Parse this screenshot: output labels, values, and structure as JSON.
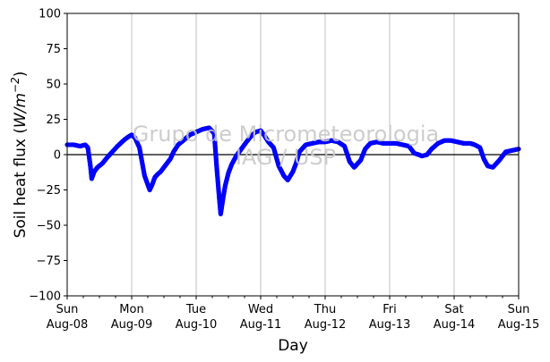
{
  "chart_data": {
    "type": "scatter",
    "title": "",
    "xlabel": "Day",
    "ylabel_main": "Soil heat flux (",
    "ylabel_unit": "W/m",
    "ylabel_exp": "−2",
    "ylabel_close": ")",
    "ylim": [
      -100,
      100
    ],
    "yticks": [
      -100,
      -75,
      -50,
      -25,
      0,
      25,
      50,
      75,
      100
    ],
    "ytick_labels": [
      "−100",
      "−75",
      "−50",
      "−25",
      "0",
      "25",
      "50",
      "75",
      "100"
    ],
    "xlim": [
      0,
      7
    ],
    "xticks": [
      0,
      1,
      2,
      3,
      4,
      5,
      6,
      7
    ],
    "xtick_labels": [
      [
        "Sun",
        "Aug-08"
      ],
      [
        "Mon",
        "Aug-09"
      ],
      [
        "Tue",
        "Aug-10"
      ],
      [
        "Wed",
        "Aug-11"
      ],
      [
        "Thu",
        "Aug-12"
      ],
      [
        "Fri",
        "Aug-13"
      ],
      [
        "Sat",
        "Aug-14"
      ],
      [
        "Sun",
        "Aug-15"
      ]
    ],
    "grid": "vertical-major",
    "zero_line": true,
    "marker_color": "#0000ff",
    "watermark_line1": "Grupo de Micrometeorologia",
    "watermark_line2": "IAG / USP",
    "series": [
      {
        "x": [
          0.0,
          0.1,
          0.2,
          0.28,
          0.32,
          0.36,
          0.38,
          0.42,
          0.47,
          0.55,
          0.62,
          0.7,
          0.78,
          0.85,
          0.9,
          0.96,
          1.0,
          1.05,
          1.12,
          1.2,
          1.28,
          1.32,
          1.36,
          1.4,
          1.45,
          1.5,
          1.55,
          1.6,
          1.65,
          1.72,
          1.8,
          1.9,
          2.0,
          2.1,
          2.2,
          2.28,
          2.32,
          2.36,
          2.38,
          2.42,
          2.45,
          2.5,
          2.55,
          2.62,
          2.7,
          2.78,
          2.85,
          2.92,
          3.0,
          3.05,
          3.12,
          3.2,
          3.28,
          3.36,
          3.42,
          3.5,
          3.55,
          3.6,
          3.7,
          3.8,
          3.9,
          4.0,
          4.1,
          4.2,
          4.3,
          4.38,
          4.45,
          4.55,
          4.62,
          4.7,
          4.8,
          4.9,
          5.0,
          5.1,
          5.2,
          5.3,
          5.38,
          5.45,
          5.5,
          5.58,
          5.65,
          5.75,
          5.85,
          5.95,
          6.05,
          6.15,
          6.25,
          6.32,
          6.4,
          6.46,
          6.52,
          6.6,
          6.7,
          6.8,
          6.9,
          7.0
        ],
        "y": [
          7,
          7,
          6,
          7,
          5,
          -8,
          -17,
          -12,
          -9,
          -6,
          -2,
          2,
          6,
          9,
          11,
          13,
          14,
          12,
          5,
          -15,
          -25,
          -21,
          -16,
          -14,
          -12,
          -9,
          -6,
          -3,
          2,
          7,
          10,
          14,
          16,
          18,
          19,
          15,
          -10,
          -32,
          -42,
          -30,
          -22,
          -13,
          -7,
          -1,
          4,
          9,
          13,
          16,
          17,
          14,
          9,
          5,
          -8,
          -15,
          -18,
          -12,
          -6,
          2,
          7,
          8,
          9,
          9,
          10,
          9,
          6,
          -5,
          -9,
          -4,
          4,
          8,
          9,
          8,
          8,
          8,
          7,
          6,
          1,
          0,
          -1,
          0,
          4,
          8,
          10,
          10,
          9,
          8,
          8,
          7,
          5,
          -3,
          -8,
          -9,
          -4,
          2,
          3,
          4
        ]
      }
    ]
  }
}
